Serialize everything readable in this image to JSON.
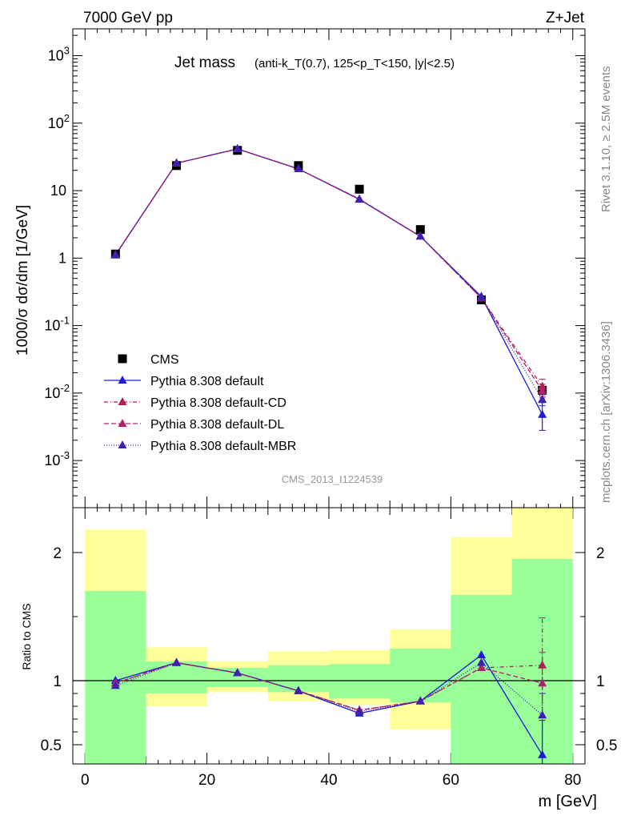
{
  "header": {
    "left": "7000 GeV pp",
    "right": "Z+Jet"
  },
  "side_labels": {
    "rivet": "Rivet 3.1.10, ≥ 2.5M events",
    "mcplots": "mcplots.cern.ch [arXiv:1306.3436]"
  },
  "watermark": "CMS_2013_I1224539",
  "chart_data": [
    {
      "type": "line",
      "title_main": "Jet mass",
      "title_sub": "(anti-k_T(0.7), 125<p_T<150, |y|<2.5)",
      "ylabel": "1000/σ dσ/dm [1/GeV]",
      "yscale": "log",
      "ylim": [
        0.0002,
        2500
      ],
      "xlim": [
        -2,
        82
      ],
      "ytick_labels": [
        "10^-3",
        "10^-2",
        "10^-1",
        "1",
        "10",
        "10^2",
        "10^3"
      ],
      "x": [
        5,
        15,
        25,
        35,
        45,
        55,
        65,
        75
      ],
      "data": {
        "name": "CMS",
        "values": [
          1.15,
          23.5,
          39.5,
          23.5,
          10.5,
          2.65,
          0.24,
          0.011
        ]
      },
      "series": [
        {
          "name": "Pythia 8.308 default",
          "color": "#1a1adb",
          "dash": "solid",
          "values": [
            1.12,
            25.5,
            41.5,
            21.0,
            7.4,
            2.1,
            0.27,
            0.0048
          ],
          "err_last": [
            0.0028,
            0.0072
          ]
        },
        {
          "name": "Pythia 8.308 default-CD",
          "color": "#b0204f",
          "dash": "5,3,1,3",
          "values": [
            1.11,
            25.5,
            41.5,
            21.0,
            7.5,
            2.1,
            0.255,
            0.0125
          ],
          "err_last": [
            0.009,
            0.016
          ]
        },
        {
          "name": "Pythia 8.308 default-DL",
          "color": "#b0206f",
          "dash": "6,3",
          "values": [
            1.12,
            25.5,
            41.5,
            21.0,
            7.5,
            2.1,
            0.255,
            0.0108
          ],
          "err_last": [
            0.0085,
            0.0135
          ]
        },
        {
          "name": "Pythia 8.308 default-MBR",
          "color": "#4020b0",
          "dash": "1,2",
          "values": [
            1.11,
            25.5,
            41.5,
            21.0,
            7.45,
            2.1,
            0.26,
            0.008
          ],
          "err_last": [
            0.0065,
            0.0098
          ]
        }
      ]
    },
    {
      "type": "line",
      "ylabel": "Ratio to CMS",
      "xlabel": "m [GeV]",
      "ylim": [
        0.35,
        2.35
      ],
      "xlim": [
        -2,
        82
      ],
      "x_ticks": [
        0,
        20,
        40,
        60,
        80
      ],
      "y_ticks": [
        0.5,
        1,
        2
      ],
      "bands": [
        {
          "x0": 0,
          "x1": 10,
          "yellow": [
            0.3,
            2.18
          ],
          "green": [
            0.3,
            1.7
          ]
        },
        {
          "x0": 10,
          "x1": 20,
          "yellow": [
            0.8,
            1.26
          ],
          "green": [
            0.9,
            1.15
          ]
        },
        {
          "x0": 20,
          "x1": 30,
          "yellow": [
            0.91,
            1.15
          ],
          "green": [
            0.95,
            1.1
          ]
        },
        {
          "x0": 30,
          "x1": 40,
          "yellow": [
            0.84,
            1.23
          ],
          "green": [
            0.91,
            1.12
          ]
        },
        {
          "x0": 40,
          "x1": 50,
          "yellow": [
            0.81,
            1.24
          ],
          "green": [
            0.86,
            1.13
          ]
        },
        {
          "x0": 50,
          "x1": 60,
          "yellow": [
            0.62,
            1.4
          ],
          "green": [
            0.83,
            1.25
          ]
        },
        {
          "x0": 60,
          "x1": 70,
          "yellow": [
            0.3,
            2.12
          ],
          "green": [
            0.3,
            1.67
          ]
        },
        {
          "x0": 70,
          "x1": 80,
          "yellow": [
            0.3,
            2.5
          ],
          "green": [
            0.3,
            1.95
          ]
        }
      ],
      "series": [
        {
          "name": "Pythia 8.308 default",
          "color": "#1a1adb",
          "dash": "solid",
          "values": [
            1.0,
            1.14,
            1.06,
            0.92,
            0.745,
            0.84,
            1.2,
            0.42
          ],
          "err_last": [
            0.27,
            0.69
          ]
        },
        {
          "name": "Pythia 8.308 default-CD",
          "color": "#b0204f",
          "dash": "5,3,1,3",
          "values": [
            0.98,
            1.14,
            1.06,
            0.92,
            0.77,
            0.84,
            1.1,
            1.12
          ],
          "err_last": [
            0.85,
            1.49
          ]
        },
        {
          "name": "Pythia 8.308 default-DL",
          "color": "#b0206f",
          "dash": "6,3",
          "values": [
            0.98,
            1.14,
            1.06,
            0.92,
            0.77,
            0.84,
            1.1,
            0.98
          ],
          "err_last": [
            0.76,
            1.22
          ]
        },
        {
          "name": "Pythia 8.308 default-MBR",
          "color": "#4020b0",
          "dash": "1,2",
          "values": [
            0.96,
            1.14,
            1.06,
            0.92,
            0.76,
            0.84,
            1.14,
            0.73
          ],
          "err_last": [
            0.6,
            0.9
          ]
        }
      ]
    }
  ]
}
